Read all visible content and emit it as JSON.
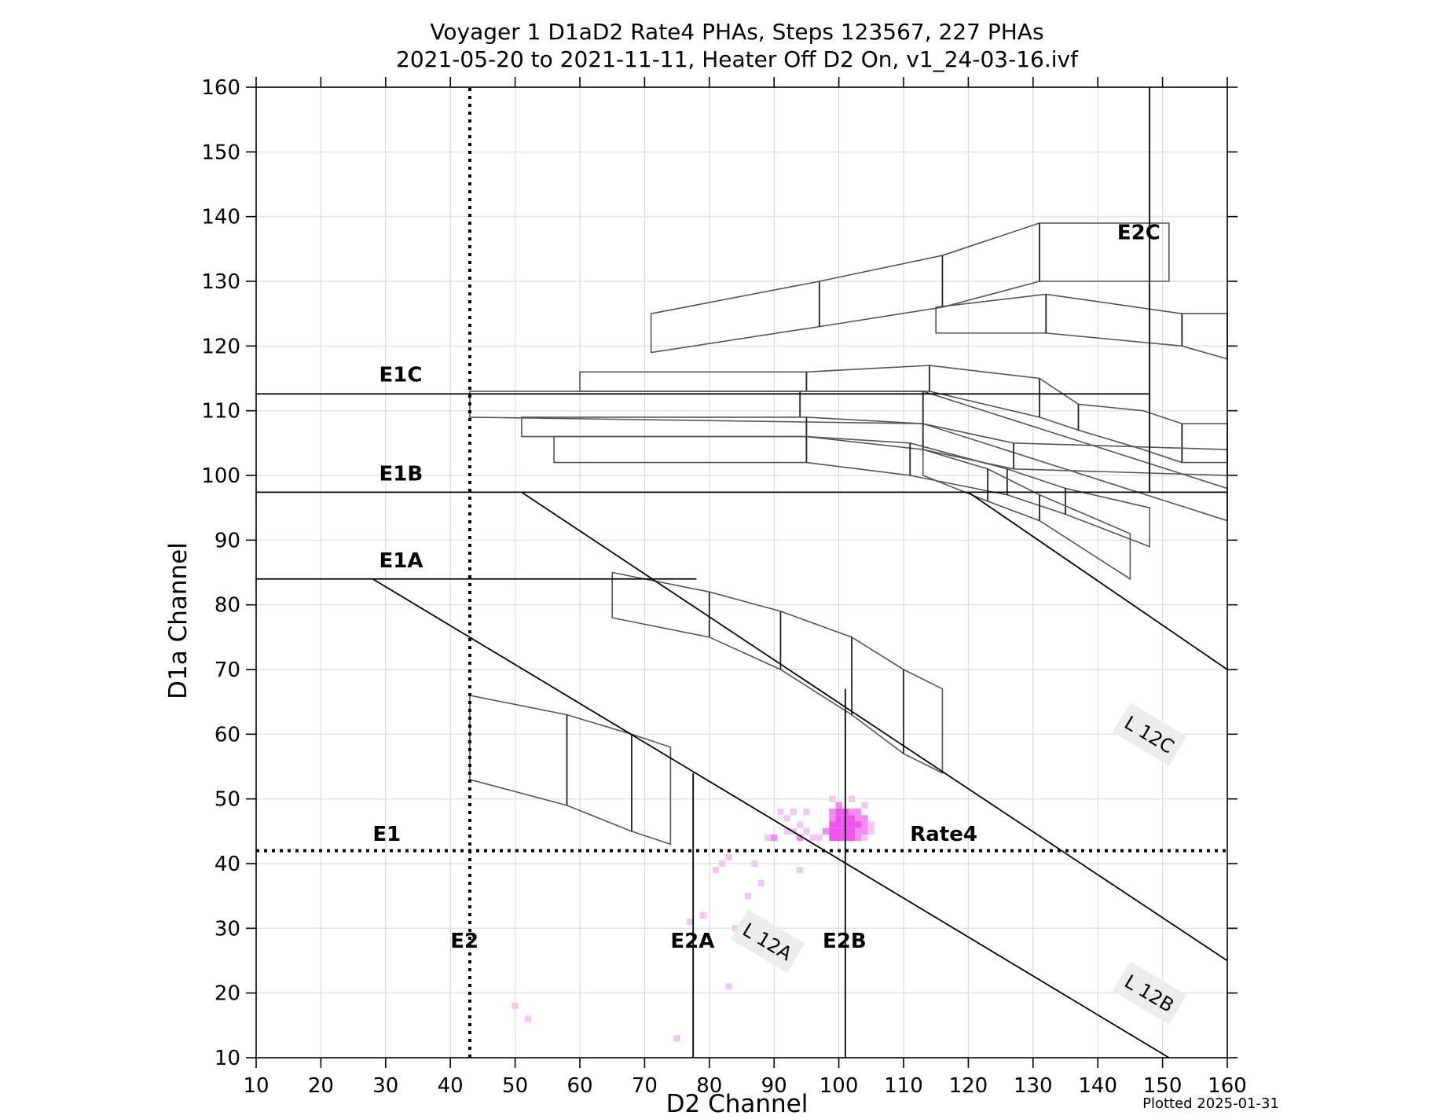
{
  "chart_data": {
    "type": "heatmap",
    "title": "Voyager 1 D1aD2 Rate4 PHAs, Steps 123567, 227 PHAs",
    "subtitle": "2021-05-20 to 2021-11-11, Heater Off D2 On, v1_24-03-16.ivf",
    "xlabel": "D2 Channel",
    "ylabel": "D1a Channel",
    "xlim": [
      10,
      160
    ],
    "ylim": [
      10,
      160
    ],
    "xticks": [
      10,
      20,
      30,
      40,
      50,
      60,
      70,
      80,
      90,
      100,
      110,
      120,
      130,
      140,
      150,
      160
    ],
    "yticks": [
      10,
      20,
      30,
      40,
      50,
      60,
      70,
      80,
      90,
      100,
      110,
      120,
      130,
      140,
      150,
      160
    ],
    "grid": true,
    "footer": "Plotted 2025-01-31",
    "colors": {
      "pha_light": "#f3c6f3",
      "pha_mid": "#f28af2",
      "pha_dense": "#ee55ee",
      "frame": "#000000",
      "box": "#555555",
      "grid": "#dcdcdc"
    },
    "threshold_lines": [
      {
        "name": "E1",
        "orientation": "horizontal",
        "y": 42,
        "style": "dotted"
      },
      {
        "name": "E2",
        "orientation": "vertical",
        "x": 43,
        "style": "dotted"
      },
      {
        "name": "E1A",
        "orientation": "horizontal",
        "y": 84,
        "x_range": [
          10,
          78
        ]
      },
      {
        "name": "E1B",
        "orientation": "horizontal",
        "y": 97.4,
        "x_range": [
          10,
          160
        ]
      },
      {
        "name": "E1C",
        "orientation": "horizontal",
        "y": 112.6,
        "x_range": [
          10,
          148
        ]
      },
      {
        "name": "E2A",
        "orientation": "vertical",
        "x": 77.5,
        "y_range": [
          10,
          54
        ]
      },
      {
        "name": "E2B",
        "orientation": "vertical",
        "x": 101,
        "y_range": [
          10,
          67
        ]
      },
      {
        "name": "E2C",
        "orientation": "vertical",
        "x": 148,
        "y_range": [
          97.4,
          160
        ]
      }
    ],
    "diagonal_lines": [
      {
        "name": "L 12A",
        "points": [
          [
            28,
            84
          ],
          [
            151,
            10
          ]
        ]
      },
      {
        "name": "L 12B",
        "points": [
          [
            51,
            97.4
          ],
          [
            160,
            25
          ]
        ]
      },
      {
        "name": "L 12C",
        "points": [
          [
            120,
            97.4
          ],
          [
            160,
            70
          ]
        ]
      }
    ],
    "labels": [
      {
        "text": "E1C",
        "x": 29,
        "y": 114.5
      },
      {
        "text": "E1B",
        "x": 29,
        "y": 99.2
      },
      {
        "text": "E1A",
        "x": 29,
        "y": 85.8
      },
      {
        "text": "E1",
        "x": 28,
        "y": 43.5
      },
      {
        "text": "E2",
        "x": 40,
        "y": 27
      },
      {
        "text": "E2A",
        "x": 74,
        "y": 27
      },
      {
        "text": "E2B",
        "x": 97.5,
        "y": 27
      },
      {
        "text": "E2C",
        "x": 143,
        "y": 136.5
      },
      {
        "text": "Rate4",
        "x": 111,
        "y": 43.5
      }
    ],
    "line_labels": [
      {
        "text": "L 12A",
        "x": 89,
        "y": 28,
        "angle": 31
      },
      {
        "text": "L 12B",
        "x": 148,
        "y": 20,
        "angle": 31
      },
      {
        "text": "L 12C",
        "x": 148,
        "y": 60,
        "angle": 31
      }
    ],
    "boxes": [
      {
        "corners": [
          [
            43,
            66
          ],
          [
            58,
            63
          ],
          [
            68,
            60
          ],
          [
            74,
            58
          ],
          [
            74,
            43
          ],
          [
            68,
            45
          ],
          [
            58,
            49
          ],
          [
            43,
            53
          ]
        ],
        "dividers": [
          [
            [
              58,
              63
            ],
            [
              58,
              49
            ]
          ],
          [
            [
              68,
              60
            ],
            [
              68,
              45
            ]
          ]
        ]
      },
      {
        "corners": [
          [
            65,
            85
          ],
          [
            80,
            82
          ],
          [
            91,
            79
          ],
          [
            102,
            75
          ],
          [
            110,
            70
          ],
          [
            116,
            67
          ],
          [
            116,
            54
          ],
          [
            110,
            57
          ],
          [
            102,
            63
          ],
          [
            91,
            70
          ],
          [
            80,
            75
          ],
          [
            65,
            78
          ]
        ],
        "dividers": [
          [
            [
              80,
              82
            ],
            [
              80,
              75
            ]
          ],
          [
            [
              91,
              79
            ],
            [
              91,
              70
            ]
          ],
          [
            [
              102,
              75
            ],
            [
              102,
              63
            ]
          ],
          [
            [
              110,
              70
            ],
            [
              110,
              57
            ]
          ]
        ]
      },
      {
        "corners": [
          [
            71,
            125
          ],
          [
            97,
            130
          ],
          [
            116,
            134
          ],
          [
            131,
            139
          ],
          [
            146,
            139
          ],
          [
            151,
            139
          ],
          [
            151,
            130
          ],
          [
            131,
            130
          ],
          [
            116,
            126
          ],
          [
            97,
            123
          ],
          [
            71,
            119
          ]
        ],
        "dividers": [
          [
            [
              97,
              130
            ],
            [
              97,
              123
            ]
          ],
          [
            [
              116,
              134
            ],
            [
              116,
              126
            ]
          ],
          [
            [
              131,
              139
            ],
            [
              131,
              130
            ]
          ]
        ]
      },
      {
        "corners": [
          [
            115,
            126
          ],
          [
            132,
            128
          ],
          [
            153,
            125
          ],
          [
            160,
            125
          ],
          [
            160,
            118
          ],
          [
            153,
            120
          ],
          [
            132,
            122
          ],
          [
            115,
            122
          ]
        ],
        "dividers": [
          [
            [
              132,
              128
            ],
            [
              132,
              122
            ]
          ],
          [
            [
              153,
              125
            ],
            [
              153,
              120
            ]
          ]
        ]
      },
      {
        "corners": [
          [
            60,
            116
          ],
          [
            95,
            116
          ],
          [
            114,
            117
          ],
          [
            131,
            115
          ],
          [
            137,
            111
          ],
          [
            147,
            110
          ],
          [
            153,
            108
          ],
          [
            160,
            108
          ],
          [
            160,
            102
          ],
          [
            153,
            102
          ],
          [
            147,
            104
          ],
          [
            137,
            107
          ],
          [
            131,
            109
          ],
          [
            114,
            113
          ],
          [
            95,
            113
          ],
          [
            60,
            113
          ]
        ],
        "dividers": [
          [
            [
              95,
              116
            ],
            [
              95,
              113
            ]
          ],
          [
            [
              114,
              117
            ],
            [
              114,
              113
            ]
          ],
          [
            [
              131,
              115
            ],
            [
              131,
              109
            ]
          ],
          [
            [
              137,
              111
            ],
            [
              137,
              107
            ]
          ],
          [
            [
              153,
              108
            ],
            [
              153,
              102
            ]
          ]
        ]
      },
      {
        "corners": [
          [
            43,
            113
          ],
          [
            113,
            113
          ],
          [
            160,
            98
          ],
          [
            160,
            93
          ],
          [
            113,
            108
          ],
          [
            43,
            109
          ]
        ],
        "dividers": [
          [
            [
              94,
              113
            ],
            [
              94,
              109
            ]
          ],
          [
            [
              113,
              113
            ],
            [
              113,
              108
            ]
          ]
        ]
      },
      {
        "corners": [
          [
            51,
            109
          ],
          [
            95,
            109
          ],
          [
            113,
            108
          ],
          [
            127,
            105
          ],
          [
            160,
            104
          ],
          [
            160,
            100
          ],
          [
            127,
            101
          ],
          [
            113,
            104
          ],
          [
            95,
            106
          ],
          [
            51,
            106
          ]
        ],
        "dividers": [
          [
            [
              95,
              109
            ],
            [
              95,
              106
            ]
          ],
          [
            [
              113,
              108
            ],
            [
              113,
              104
            ]
          ],
          [
            [
              127,
              105
            ],
            [
              127,
              101
            ]
          ]
        ]
      },
      {
        "corners": [
          [
            56,
            106
          ],
          [
            95,
            106
          ],
          [
            111,
            105
          ],
          [
            126,
            101
          ],
          [
            135,
            98
          ],
          [
            148,
            95
          ],
          [
            148,
            89
          ],
          [
            135,
            94
          ],
          [
            126,
            97
          ],
          [
            111,
            100
          ],
          [
            95,
            102
          ],
          [
            56,
            102
          ]
        ],
        "dividers": [
          [
            [
              95,
              106
            ],
            [
              95,
              102
            ]
          ],
          [
            [
              111,
              105
            ],
            [
              111,
              100
            ]
          ],
          [
            [
              126,
              101
            ],
            [
              126,
              97
            ]
          ],
          [
            [
              135,
              98
            ],
            [
              135,
              94
            ]
          ]
        ]
      },
      {
        "corners": [
          [
            113,
            104
          ],
          [
            123,
            101
          ],
          [
            131,
            97
          ],
          [
            145,
            91
          ],
          [
            145,
            84
          ],
          [
            131,
            93
          ],
          [
            123,
            96
          ],
          [
            113,
            100
          ]
        ],
        "dividers": [
          [
            [
              123,
              101
            ],
            [
              123,
              96
            ]
          ],
          [
            [
              131,
              97
            ],
            [
              131,
              93
            ]
          ]
        ]
      }
    ],
    "points": [
      {
        "x": 50,
        "y": 18,
        "c": 1
      },
      {
        "x": 52,
        "y": 16,
        "c": 1
      },
      {
        "x": 75,
        "y": 13,
        "c": 1
      },
      {
        "x": 77,
        "y": 31,
        "c": 1
      },
      {
        "x": 79,
        "y": 32,
        "c": 1
      },
      {
        "x": 81,
        "y": 39,
        "c": 1
      },
      {
        "x": 82,
        "y": 40,
        "c": 1
      },
      {
        "x": 83,
        "y": 41,
        "c": 1
      },
      {
        "x": 83,
        "y": 21,
        "c": 1
      },
      {
        "x": 84,
        "y": 30,
        "c": 1
      },
      {
        "x": 86,
        "y": 35,
        "c": 1
      },
      {
        "x": 87,
        "y": 31,
        "c": 1
      },
      {
        "x": 87,
        "y": 40,
        "c": 1
      },
      {
        "x": 88,
        "y": 37,
        "c": 1
      },
      {
        "x": 89,
        "y": 44,
        "c": 1
      },
      {
        "x": 90,
        "y": 44,
        "c": 2
      },
      {
        "x": 91,
        "y": 28,
        "c": 1
      },
      {
        "x": 91,
        "y": 48,
        "c": 1
      },
      {
        "x": 92,
        "y": 47,
        "c": 1
      },
      {
        "x": 92,
        "y": 45,
        "c": 1
      },
      {
        "x": 93,
        "y": 48,
        "c": 1
      },
      {
        "x": 93,
        "y": 45,
        "c": 1
      },
      {
        "x": 94,
        "y": 46,
        "c": 1
      },
      {
        "x": 94,
        "y": 44,
        "c": 2
      },
      {
        "x": 94,
        "y": 39,
        "c": 1
      },
      {
        "x": 95,
        "y": 48,
        "c": 1
      },
      {
        "x": 95,
        "y": 45,
        "c": 1
      },
      {
        "x": 96,
        "y": 44,
        "c": 1
      },
      {
        "x": 97,
        "y": 44,
        "c": 1
      },
      {
        "x": 98,
        "y": 45,
        "c": 2
      },
      {
        "x": 99,
        "y": 50,
        "c": 1
      },
      {
        "x": 99,
        "y": 48,
        "c": 2
      },
      {
        "x": 99,
        "y": 47,
        "c": 2
      },
      {
        "x": 99,
        "y": 46,
        "c": 3
      },
      {
        "x": 99,
        "y": 45,
        "c": 3
      },
      {
        "x": 99,
        "y": 44,
        "c": 3
      },
      {
        "x": 100,
        "y": 49,
        "c": 2
      },
      {
        "x": 100,
        "y": 48,
        "c": 3
      },
      {
        "x": 100,
        "y": 47,
        "c": 3
      },
      {
        "x": 100,
        "y": 46,
        "c": 3
      },
      {
        "x": 100,
        "y": 45,
        "c": 3
      },
      {
        "x": 100,
        "y": 44,
        "c": 3
      },
      {
        "x": 101,
        "y": 48,
        "c": 3
      },
      {
        "x": 101,
        "y": 47,
        "c": 3
      },
      {
        "x": 101,
        "y": 46,
        "c": 3
      },
      {
        "x": 101,
        "y": 45,
        "c": 3
      },
      {
        "x": 101,
        "y": 44,
        "c": 3
      },
      {
        "x": 102,
        "y": 50,
        "c": 1
      },
      {
        "x": 102,
        "y": 48,
        "c": 2
      },
      {
        "x": 102,
        "y": 47,
        "c": 3
      },
      {
        "x": 102,
        "y": 46,
        "c": 3
      },
      {
        "x": 102,
        "y": 45,
        "c": 3
      },
      {
        "x": 102,
        "y": 44,
        "c": 3
      },
      {
        "x": 103,
        "y": 48,
        "c": 2
      },
      {
        "x": 103,
        "y": 47,
        "c": 2
      },
      {
        "x": 103,
        "y": 46,
        "c": 3
      },
      {
        "x": 103,
        "y": 45,
        "c": 2
      },
      {
        "x": 103,
        "y": 44,
        "c": 2
      },
      {
        "x": 104,
        "y": 49,
        "c": 1
      },
      {
        "x": 104,
        "y": 47,
        "c": 2
      },
      {
        "x": 104,
        "y": 46,
        "c": 2
      },
      {
        "x": 104,
        "y": 45,
        "c": 2
      },
      {
        "x": 104,
        "y": 44,
        "c": 1
      },
      {
        "x": 105,
        "y": 46,
        "c": 1
      },
      {
        "x": 105,
        "y": 45,
        "c": 1
      }
    ]
  }
}
